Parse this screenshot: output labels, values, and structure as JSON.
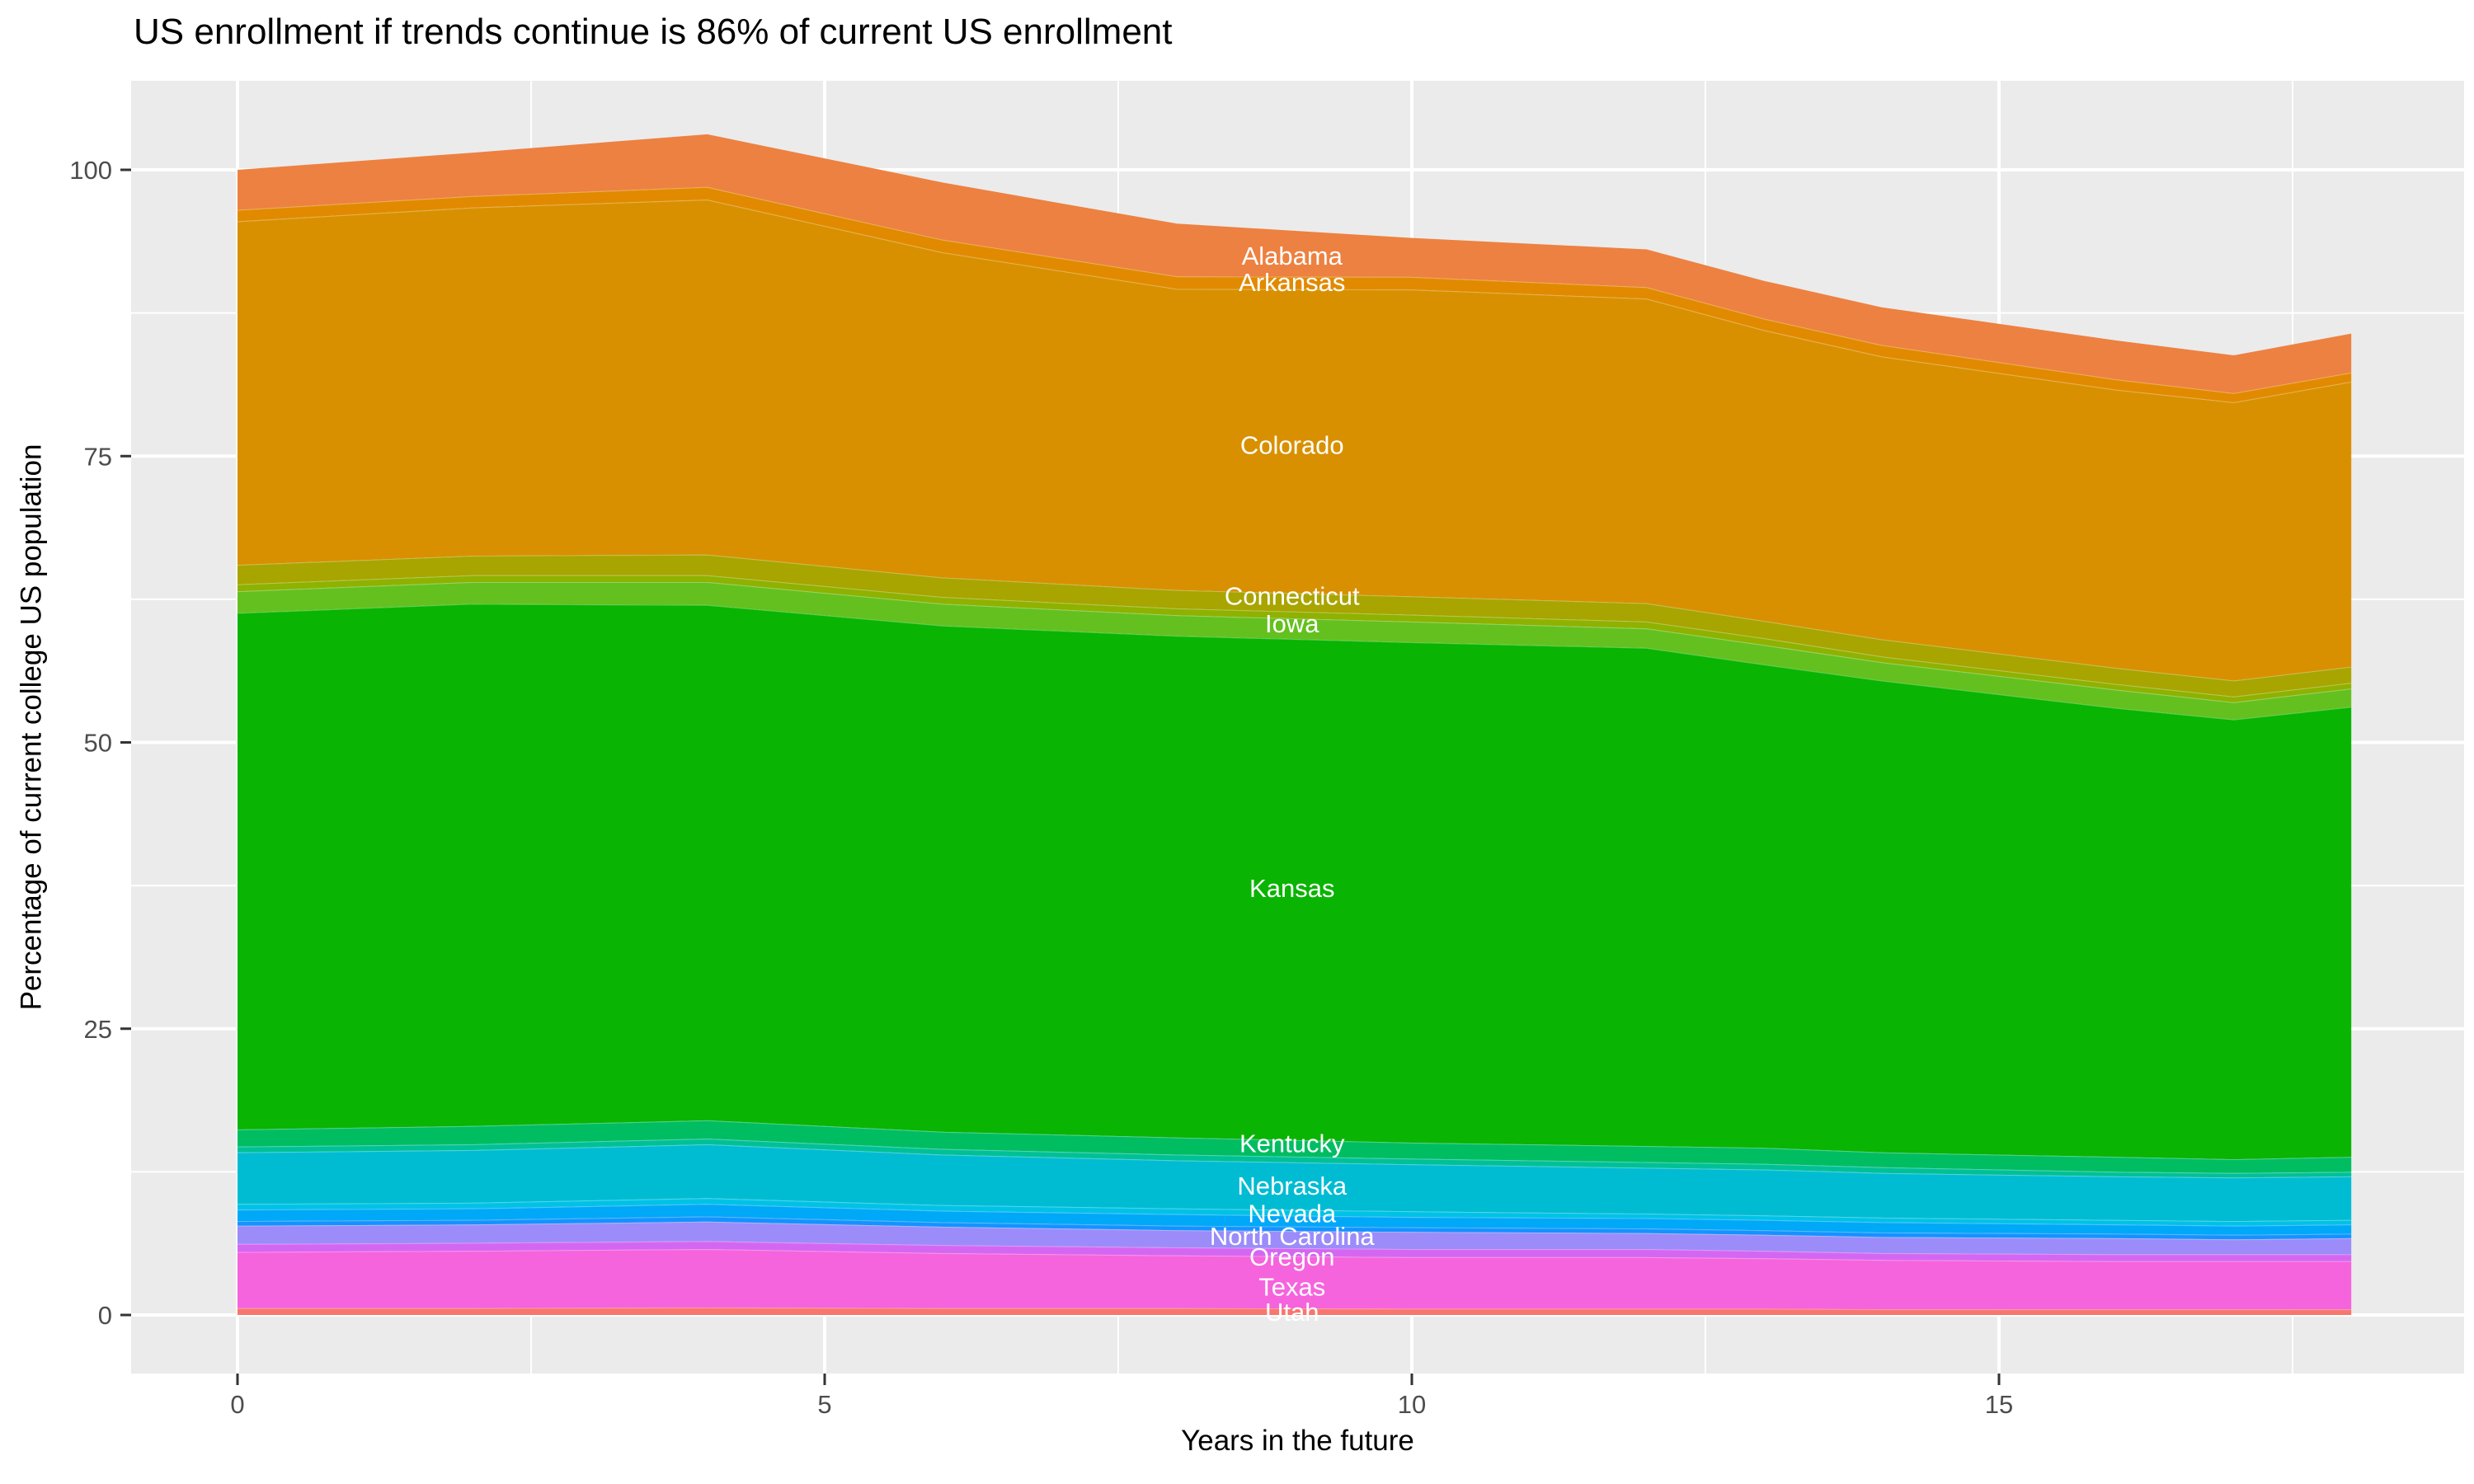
{
  "title": "US enrollment if trends continue is 86% of current US enrollment",
  "x_axis": {
    "label": "Years in the future"
  },
  "y_axis": {
    "label": "Percentage of current college US population"
  },
  "chart_data": {
    "type": "area",
    "stacked": true,
    "title": "US enrollment if trends continue is 86% of current US enrollment",
    "xlabel": "Years in the future",
    "ylabel": "Percentage of current college US population",
    "panel_bg": "#EBEBEB",
    "grid_color": "#FFFFFF",
    "tick_color": "#333333",
    "tick_label_color": "#4D4D4D",
    "state_label_color": "#FFFFFF",
    "x_major_ticks": [
      0,
      5,
      10,
      15
    ],
    "x_minor_ticks": [
      2.5,
      7.5,
      12.5,
      17.5
    ],
    "y_major_ticks": [
      0,
      25,
      50,
      75,
      100
    ],
    "y_minor_ticks": [
      12.5,
      37.5,
      62.5,
      87.5
    ],
    "x_tick_labels": [
      "0",
      "5",
      "10",
      "15"
    ],
    "y_tick_labels": [
      "0",
      "25",
      "50",
      "75",
      "100"
    ],
    "xlim": [
      0,
      18
    ],
    "ylim": [
      0,
      103
    ],
    "label_x": 8.98,
    "x": [
      0,
      2,
      4,
      6,
      8,
      10,
      12,
      13,
      14,
      16,
      17,
      18
    ],
    "series": [
      {
        "name": "Alabama",
        "color": "#ED8141",
        "label_y": 92.5,
        "values": [
          3.5,
          3.8,
          4.6,
          5.0,
          4.6,
          3.4,
          3.3,
          3.3,
          3.3,
          3.4,
          3.3,
          3.4
        ]
      },
      {
        "name": "Arkansas",
        "color": "#E18A00",
        "label_y": 90.2,
        "values": [
          1.0,
          1.0,
          1.1,
          1.1,
          1.1,
          1.1,
          1.0,
          1.0,
          1.0,
          0.9,
          0.8,
          0.8
        ]
      },
      {
        "name": "Colorado",
        "color": "#D89000",
        "label_y": 76.0,
        "values": [
          30.0,
          30.4,
          31.0,
          28.4,
          26.3,
          26.8,
          26.6,
          25.4,
          24.7,
          24.3,
          24.3,
          24.9
        ]
      },
      {
        "name": "Connecticut",
        "color": "#A8A400",
        "label_y": 62.8,
        "values": [
          1.7,
          1.7,
          1.8,
          1.7,
          1.6,
          1.6,
          1.6,
          1.5,
          1.5,
          1.4,
          1.4,
          1.4
        ]
      },
      {
        "name": "",
        "color": "#8FB100",
        "label_y": null,
        "values": [
          0.6,
          0.6,
          0.6,
          0.6,
          0.6,
          0.6,
          0.6,
          0.6,
          0.5,
          0.5,
          0.5,
          0.5
        ]
      },
      {
        "name": "Iowa",
        "color": "#64C01E",
        "label_y": 60.4,
        "values": [
          1.9,
          1.9,
          2.0,
          1.9,
          1.8,
          1.8,
          1.7,
          1.7,
          1.6,
          1.6,
          1.5,
          1.6
        ]
      },
      {
        "name": "Kansas",
        "color": "#0AB402",
        "label_y": 37.3,
        "values": [
          45.1,
          45.6,
          45.0,
          44.2,
          43.8,
          43.7,
          43.5,
          42.2,
          41.2,
          39.2,
          38.4,
          39.3
        ]
      },
      {
        "name": "Kentucky",
        "color": "#00BD62",
        "label_y": 15.0,
        "values": [
          1.5,
          1.6,
          1.6,
          1.5,
          1.5,
          1.4,
          1.4,
          1.4,
          1.3,
          1.3,
          1.2,
          1.3
        ]
      },
      {
        "name": "",
        "color": "#00C096",
        "label_y": null,
        "values": [
          0.5,
          0.5,
          0.5,
          0.5,
          0.5,
          0.5,
          0.5,
          0.5,
          0.5,
          0.4,
          0.4,
          0.4
        ]
      },
      {
        "name": "Nebraska",
        "color": "#00BCD2",
        "label_y": 11.3,
        "values": [
          4.5,
          4.6,
          4.7,
          4.4,
          4.2,
          4.1,
          4.0,
          4.0,
          3.9,
          3.8,
          3.8,
          3.8
        ]
      },
      {
        "name": "",
        "color": "#00C2E6",
        "label_y": null,
        "values": [
          0.5,
          0.5,
          0.5,
          0.5,
          0.5,
          0.5,
          0.4,
          0.4,
          0.4,
          0.4,
          0.4,
          0.4
        ]
      },
      {
        "name": "Nevada",
        "color": "#00A8F8",
        "label_y": 8.9,
        "values": [
          1.0,
          1.0,
          1.1,
          1.0,
          1.0,
          0.9,
          0.9,
          0.9,
          0.9,
          0.8,
          0.8,
          0.8
        ]
      },
      {
        "name": "",
        "color": "#1493FF",
        "label_y": null,
        "values": [
          0.4,
          0.4,
          0.45,
          0.4,
          0.4,
          0.4,
          0.4,
          0.4,
          0.4,
          0.4,
          0.4,
          0.4
        ]
      },
      {
        "name": "North Carolina",
        "color": "#9B8CFA",
        "label_y": 6.9,
        "values": [
          1.6,
          1.6,
          1.7,
          1.6,
          1.5,
          1.5,
          1.4,
          1.4,
          1.4,
          1.4,
          1.3,
          1.4
        ]
      },
      {
        "name": "Oregon",
        "color": "#D467F2",
        "label_y": 5.1,
        "values": [
          0.7,
          0.7,
          0.7,
          0.7,
          0.7,
          0.7,
          0.7,
          0.65,
          0.6,
          0.6,
          0.6,
          0.6
        ]
      },
      {
        "name": "Texas",
        "color": "#F564DC",
        "label_y": 2.5,
        "values": [
          4.9,
          5.0,
          5.1,
          4.8,
          4.6,
          4.5,
          4.5,
          4.4,
          4.3,
          4.2,
          4.2,
          4.2
        ]
      },
      {
        "name": "Utah",
        "color": "#F8766D",
        "label_y": 0.3,
        "values": [
          0.6,
          0.6,
          0.65,
          0.6,
          0.6,
          0.55,
          0.55,
          0.55,
          0.5,
          0.5,
          0.5,
          0.5
        ]
      }
    ]
  }
}
